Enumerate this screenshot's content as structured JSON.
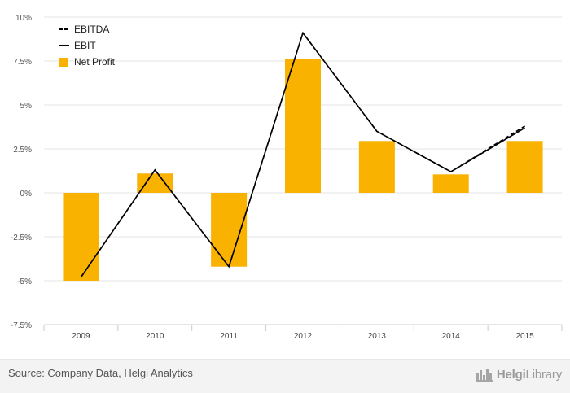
{
  "chart_data": {
    "type": "bar",
    "title": "",
    "xlabel": "",
    "ylabel": "",
    "categories": [
      "2009",
      "2010",
      "2011",
      "2012",
      "2013",
      "2014",
      "2015"
    ],
    "ylim": [
      -7.5,
      10
    ],
    "yticks": [
      -7.5,
      -5,
      -2.5,
      0,
      2.5,
      5,
      7.5,
      10
    ],
    "ytick_labels": [
      "-7.5%",
      "-5%",
      "-2.5%",
      "0%",
      "2.5%",
      "5%",
      "7.5%",
      "10%"
    ],
    "grid": true,
    "legend_position": "top-left",
    "series": [
      {
        "name": "EBITDA",
        "type": "line",
        "style": "dashed",
        "color": "#000000",
        "values": [
          -4.8,
          1.3,
          -4.2,
          9.1,
          3.5,
          1.2,
          3.8
        ]
      },
      {
        "name": "EBIT",
        "type": "line",
        "style": "solid",
        "color": "#000000",
        "values": [
          -4.8,
          1.3,
          -4.2,
          9.1,
          3.5,
          1.2,
          3.7
        ]
      },
      {
        "name": "Net Profit",
        "type": "bar",
        "color": "#F9B200",
        "values": [
          -5.0,
          1.1,
          -4.2,
          7.6,
          2.95,
          1.05,
          2.95
        ]
      }
    ]
  },
  "footer": {
    "source": "Source: Company Data, Helgi Analytics",
    "logo_text_1": "Helgi",
    "logo_text_2": "Library"
  },
  "icons": {
    "logo_mark": "city-skyline-icon"
  }
}
